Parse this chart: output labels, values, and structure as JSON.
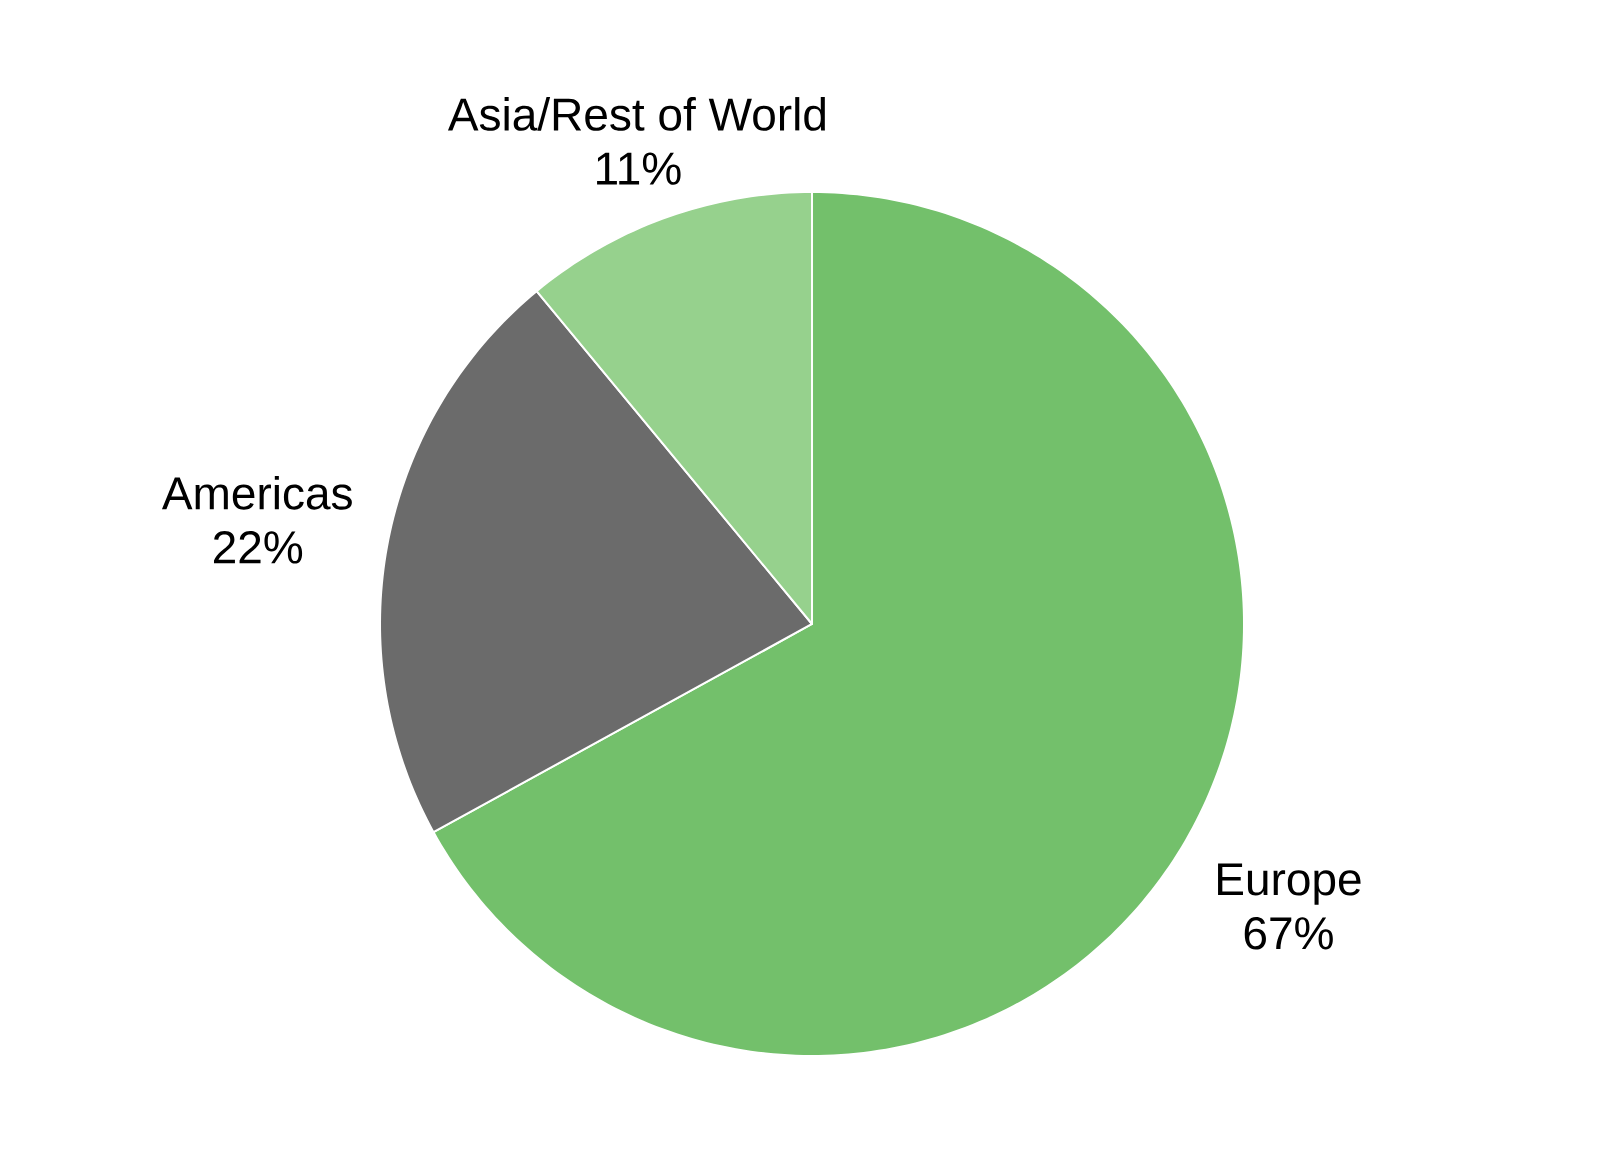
{
  "chart_data": {
    "type": "pie",
    "categories": [
      "Europe",
      "Americas",
      "Asia/Rest of World"
    ],
    "values": [
      67,
      22,
      11
    ],
    "value_labels": [
      "67%",
      "22%",
      "11%"
    ],
    "colors": [
      "#73c06b",
      "#6b6b6b",
      "#96d18d"
    ]
  }
}
